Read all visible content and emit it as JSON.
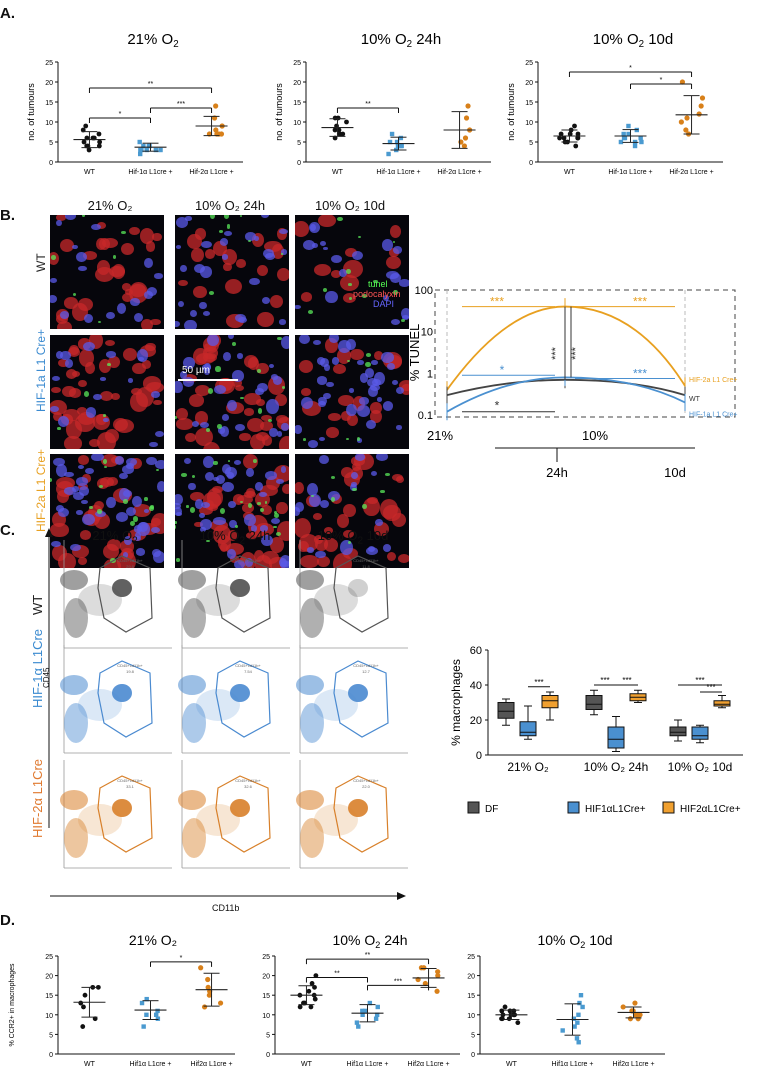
{
  "panels": {
    "A": "A.",
    "B": "B.",
    "C": "C.",
    "D": "D."
  },
  "panelA": {
    "ylabel": "no. of tumours",
    "titles": [
      "21% O",
      "10% O",
      "10% O"
    ],
    "title_suffix": [
      "",
      " 24h",
      " 10d"
    ],
    "subscript": "2",
    "xcats": [
      "WT",
      "Hif-1α L1cre +",
      "Hif-2α L1cre +"
    ]
  },
  "panelB": {
    "col_titles": [
      "21% O₂",
      "10% O₂ 24h",
      "10% O₂ 10d"
    ],
    "row_labels": [
      "WT",
      "HIF-1a L1 Cre+",
      "HIF-2a L1 Cre+"
    ],
    "legend": [
      "tunel",
      "podocalyxin",
      "DAPI"
    ],
    "scalebar": "50 µm",
    "tunel_chart": {
      "ylabel": "% TUNEL",
      "yticks": [
        "100",
        "10",
        "1",
        "0.1"
      ],
      "xlabels": [
        "21%",
        "10%",
        "24h",
        "10d"
      ],
      "series_labels": [
        "HIF-2a L1 Cre+",
        "WT",
        "HIF-1a L1 Cre+"
      ],
      "sig": [
        "***",
        "***",
        "*",
        "***",
        "***",
        "***",
        "*"
      ]
    }
  },
  "panelC": {
    "col_titles": [
      "21% O",
      "10% O",
      "10% O"
    ],
    "title_suffix": [
      "",
      " 24h",
      " 10d"
    ],
    "subscript": "2",
    "row_labels": [
      "WT",
      "HIF-1α L1Cre",
      "HIF-2α L1Cre"
    ],
    "yaxis": "CD45",
    "xaxis": "CD11b",
    "gate_label": "CD45+cd11b+",
    "gate_values": [
      "29.8",
      "23.4",
      "11.8",
      "19.8",
      "7.54",
      "12.7",
      "33.1",
      "32.6",
      "22.0"
    ],
    "macro_chart": {
      "ylabel": "% macrophages",
      "yticks": [
        "0",
        "20",
        "40",
        "60"
      ],
      "groups": [
        "21% O₂",
        "10% O₂ 24h",
        "10% O₂ 10d"
      ],
      "legend": [
        "DF",
        "HIF1αL1Cre+",
        "HIF2αL1Cre+"
      ],
      "sig": [
        "***",
        "***",
        "***",
        "***",
        "***"
      ]
    }
  },
  "panelD": {
    "ylabel": "% CCR2+ in macrophages",
    "titles": [
      "21% O₂",
      "10% O",
      "10% O"
    ],
    "title_suffix": [
      "",
      " 24h",
      " 10d"
    ],
    "subscript": "2",
    "xcats": [
      "WT",
      "Hif1α L1cre +",
      "Hif2α L1cre +"
    ],
    "sig": [
      "*",
      "**",
      "**",
      "***"
    ]
  },
  "chart_data": [
    {
      "type": "scatter",
      "title": "21% O2",
      "ylabel": "no. of tumours",
      "categories": [
        "WT",
        "Hif-1α L1cre +",
        "Hif-2α L1cre +"
      ],
      "ylim": [
        0,
        25
      ],
      "means": [
        5.6,
        3.7,
        9.0
      ],
      "sd": [
        2.0,
        1.0,
        2.4
      ],
      "points": [
        [
          9,
          8,
          7,
          6,
          6,
          5,
          5,
          4,
          4,
          3,
          4,
          6
        ],
        [
          5,
          4,
          4,
          3,
          3,
          3,
          3,
          3,
          2,
          4
        ],
        [
          14,
          11,
          9,
          8,
          7,
          7,
          7,
          7
        ]
      ],
      "significance": [
        "**",
        "*",
        "***"
      ]
    },
    {
      "type": "scatter",
      "title": "10% O2 24h",
      "ylabel": "no. of tumours",
      "categories": [
        "WT",
        "Hif-1α L1cre +",
        "Hif-2α L1cre +"
      ],
      "ylim": [
        0,
        25
      ],
      "means": [
        8.6,
        4.6,
        8.0
      ],
      "sd": [
        2.2,
        1.6,
        4.6
      ],
      "points": [
        [
          11,
          11,
          10,
          9,
          8,
          8,
          7,
          7,
          6
        ],
        [
          7,
          6,
          5,
          5,
          4,
          4,
          4,
          3,
          2
        ],
        [
          14,
          11,
          8,
          6,
          5,
          4
        ]
      ],
      "significance": [
        "**"
      ]
    },
    {
      "type": "scatter",
      "title": "10% O2 10d",
      "ylabel": "no. of tumours",
      "categories": [
        "WT",
        "Hif-1α L1cre +",
        "Hif-2α L1cre +"
      ],
      "ylim": [
        0,
        25
      ],
      "means": [
        6.5,
        6.5,
        11.8
      ],
      "sd": [
        1.5,
        1.6,
        4.8
      ],
      "points": [
        [
          9,
          8,
          7,
          7,
          7,
          6,
          6,
          6,
          5,
          5,
          4,
          6
        ],
        [
          9,
          8,
          7,
          7,
          6,
          6,
          6,
          5,
          5,
          5,
          4
        ],
        [
          20,
          16,
          14,
          12,
          11,
          10,
          8,
          7
        ]
      ],
      "significance": [
        "*",
        "*"
      ]
    },
    {
      "type": "line",
      "ylabel": "% TUNEL",
      "x": [
        "21%",
        "10% 24h",
        "10% 10d"
      ],
      "yscale": "log",
      "ylim": [
        0.1,
        100
      ],
      "series": [
        {
          "name": "HIF-2a L1 Cre+",
          "values": [
            0.4,
            40,
            0.5
          ]
        },
        {
          "name": "WT",
          "values": [
            0.3,
            0.7,
            0.3
          ]
        },
        {
          "name": "HIF-1a L1 Cre+",
          "values": [
            0.12,
            0.8,
            0.2
          ]
        }
      ]
    },
    {
      "type": "box",
      "ylabel": "% macrophages",
      "categories": [
        "21% O2",
        "10% O2 24h",
        "10% O2 10d"
      ],
      "ylim": [
        0,
        60
      ],
      "series": [
        {
          "name": "DF",
          "color": "#555555",
          "boxes": [
            [
              17,
              21,
              25,
              30,
              32
            ],
            [
              23,
              26,
              29,
              34,
              37
            ],
            [
              8,
              11,
              13,
              16,
              20
            ]
          ]
        },
        {
          "name": "HIF1αL1Cre+",
          "color": "#4a90d0",
          "boxes": [
            [
              9,
              11,
              13,
              19,
              28
            ],
            [
              2,
              4,
              9,
              16,
              22
            ],
            [
              7,
              9,
              11,
              16,
              17
            ]
          ]
        },
        {
          "name": "HIF2αL1Cre+",
          "color": "#f0a030",
          "boxes": [
            [
              20,
              27,
              31,
              34,
              36
            ],
            [
              30,
              31,
              33,
              35,
              37
            ],
            [
              27,
              28,
              29,
              31,
              34
            ]
          ]
        }
      ]
    },
    {
      "type": "scatter",
      "title": "21% O2",
      "ylabel": "% CCR2+ in macrophages",
      "categories": [
        "WT",
        "Hif1α L1cre +",
        "Hif2α L1cre +"
      ],
      "ylim": [
        0,
        25
      ],
      "means": [
        13.2,
        11.2,
        16.4
      ],
      "sd": [
        3.8,
        2.4,
        4.2
      ],
      "points": [
        [
          17,
          17,
          15,
          13,
          12,
          9,
          7
        ],
        [
          14,
          13,
          11,
          10,
          10,
          9,
          7
        ],
        [
          22,
          19,
          17,
          16,
          15,
          13,
          12
        ]
      ],
      "significance": [
        "*"
      ]
    },
    {
      "type": "scatter",
      "title": "10% O2 24h",
      "ylabel": "% CCR2+ in macrophages",
      "categories": [
        "WT",
        "Hif1α L1cre +",
        "Hif2α L1cre +"
      ],
      "ylim": [
        0,
        25
      ],
      "means": [
        15.0,
        10.4,
        19.4
      ],
      "sd": [
        2.4,
        2.2,
        2.4
      ],
      "points": [
        [
          20,
          18,
          17,
          16,
          15,
          15,
          14,
          13,
          13,
          12,
          12
        ],
        [
          13,
          12,
          11,
          11,
          10,
          10,
          9,
          8,
          7
        ],
        [
          22,
          22,
          21,
          20,
          19,
          18,
          16
        ]
      ],
      "significance": [
        "**",
        "**",
        "***"
      ]
    },
    {
      "type": "scatter",
      "title": "10% O2 10d",
      "ylabel": "",
      "categories": [
        "WT",
        "Hif1α L1cre +",
        "Hif2α L1cre +"
      ],
      "ylim": [
        0,
        25
      ],
      "means": [
        10.0,
        8.8,
        10.6
      ],
      "sd": [
        1.2,
        4.0,
        1.4
      ],
      "points": [
        [
          12,
          11,
          11,
          10,
          10,
          10,
          10,
          9,
          9,
          9,
          8,
          11
        ],
        [
          15,
          13,
          12,
          10,
          9,
          8,
          7,
          6,
          4,
          3
        ],
        [
          13,
          12,
          11,
          11,
          10,
          10,
          10,
          9,
          9
        ]
      ],
      "significance": []
    }
  ]
}
